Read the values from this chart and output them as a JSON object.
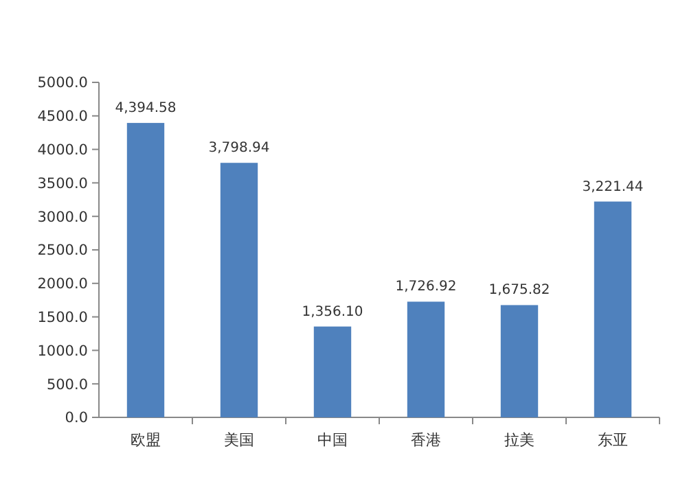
{
  "chart_data": {
    "type": "bar",
    "categories": [
      "欧盟",
      "美国",
      "中国",
      "香港",
      "拉美",
      "东亚"
    ],
    "values": [
      4394.58,
      3798.94,
      1356.1,
      1726.92,
      1675.82,
      3221.44
    ],
    "value_labels": [
      "4,394.58",
      "3,798.94",
      "1,356.10",
      "1,726.92",
      "1,675.82",
      "3,221.44"
    ],
    "color": "#4f81bd",
    "ylim": [
      0,
      5000
    ],
    "yticks": [
      {
        "value": 0,
        "label": "0.0"
      },
      {
        "value": 500,
        "label": "500.0"
      },
      {
        "value": 1000,
        "label": "1000.0"
      },
      {
        "value": 1500,
        "label": "1500.0"
      },
      {
        "value": 2000,
        "label": "2000.0"
      },
      {
        "value": 2500,
        "label": "2500.0"
      },
      {
        "value": 3000,
        "label": "3000.0"
      },
      {
        "value": 3500,
        "label": "3500.0"
      },
      {
        "value": 4000,
        "label": "4000.0"
      },
      {
        "value": 4500,
        "label": "4500.0"
      },
      {
        "value": 5000,
        "label": "5000.0"
      }
    ],
    "grid": false
  }
}
